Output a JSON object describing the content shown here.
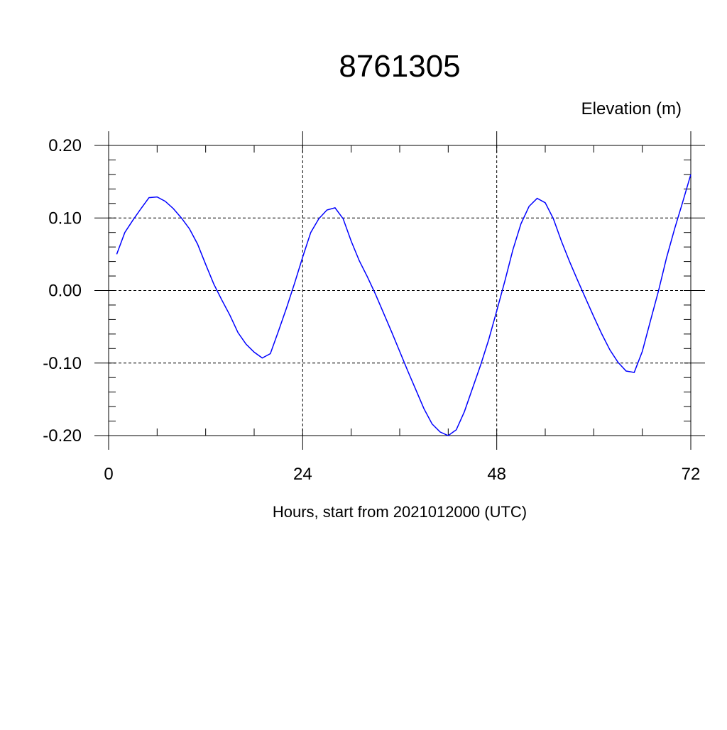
{
  "chart_data": {
    "type": "line",
    "title": "8761305",
    "units_label": "Elevation (m)",
    "xlabel": "Hours, start from 2021012000 (UTC)",
    "xlim": [
      0,
      72
    ],
    "ylim": [
      -0.2,
      0.2
    ],
    "x_ticks": [
      0,
      24,
      48,
      72
    ],
    "x_tick_labels": [
      "0",
      "24",
      "48",
      "72"
    ],
    "y_ticks": [
      -0.2,
      -0.1,
      0.0,
      0.1,
      0.2
    ],
    "y_tick_labels": [
      "-0.20",
      "-0.10",
      "0.00",
      "0.10",
      "0.20"
    ],
    "x_minor_step": 6,
    "y_minor_step": 0.02,
    "grid": true,
    "series": [
      {
        "color": "#0000ff",
        "x": [
          1,
          2,
          3,
          4,
          5,
          6,
          7,
          8,
          9,
          10,
          11,
          12,
          13,
          14,
          15,
          16,
          17,
          18,
          19,
          20,
          21,
          22,
          23,
          24,
          25,
          26,
          27,
          28,
          29,
          30,
          31,
          32,
          33,
          34,
          35,
          36,
          37,
          38,
          39,
          40,
          41,
          42,
          43,
          44,
          45,
          46,
          47,
          48,
          49,
          50,
          51,
          52,
          53,
          54,
          55,
          56,
          57,
          58,
          59,
          60,
          61,
          62,
          63,
          64,
          65,
          66,
          67,
          68,
          69,
          70,
          71,
          72
        ],
        "y": [
          0.05,
          0.08,
          0.097,
          0.113,
          0.128,
          0.129,
          0.123,
          0.113,
          0.1,
          0.085,
          0.064,
          0.036,
          0.009,
          -0.013,
          -0.034,
          -0.058,
          -0.074,
          -0.085,
          -0.093,
          -0.087,
          -0.056,
          -0.024,
          0.01,
          0.046,
          0.08,
          0.099,
          0.111,
          0.114,
          0.099,
          0.068,
          0.041,
          0.019,
          -0.005,
          -0.031,
          -0.057,
          -0.084,
          -0.111,
          -0.137,
          -0.163,
          -0.184,
          -0.195,
          -0.2,
          -0.192,
          -0.167,
          -0.135,
          -0.103,
          -0.068,
          -0.028,
          0.013,
          0.056,
          0.092,
          0.116,
          0.127,
          0.121,
          0.099,
          0.068,
          0.04,
          0.014,
          -0.011,
          -0.036,
          -0.06,
          -0.082,
          -0.099,
          -0.111,
          -0.113,
          -0.084,
          -0.042,
          -0.001,
          0.045,
          0.085,
          0.122,
          0.16
        ]
      }
    ]
  }
}
